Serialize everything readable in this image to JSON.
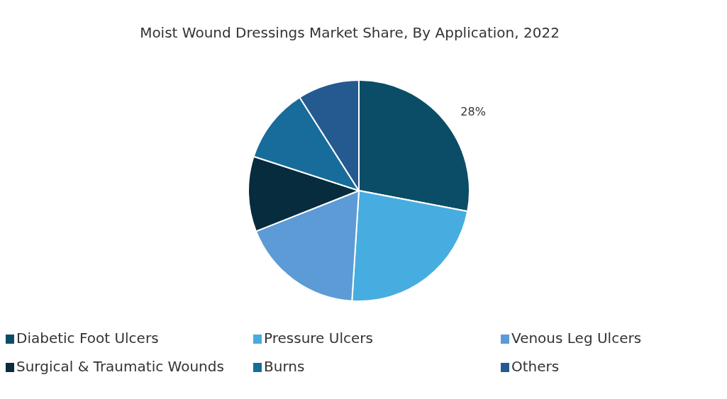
{
  "chart_data": {
    "type": "pie",
    "title": "Moist Wound Dressings Market Share, By Application, 2022",
    "categories": [
      "Diabetic Foot Ulcers",
      "Pressure Ulcers",
      "Venous Leg Ulcers",
      "Surgical & Traumatic Wounds",
      "Burns",
      "Others"
    ],
    "values": [
      28,
      23,
      18,
      11,
      11,
      9
    ],
    "colors": [
      "#0b4d66",
      "#47ade0",
      "#5c9bd5",
      "#062c3e",
      "#186c9b",
      "#245a8f"
    ],
    "value_labels": [
      "28%",
      null,
      null,
      null,
      null,
      null
    ],
    "legend": "bottom"
  }
}
